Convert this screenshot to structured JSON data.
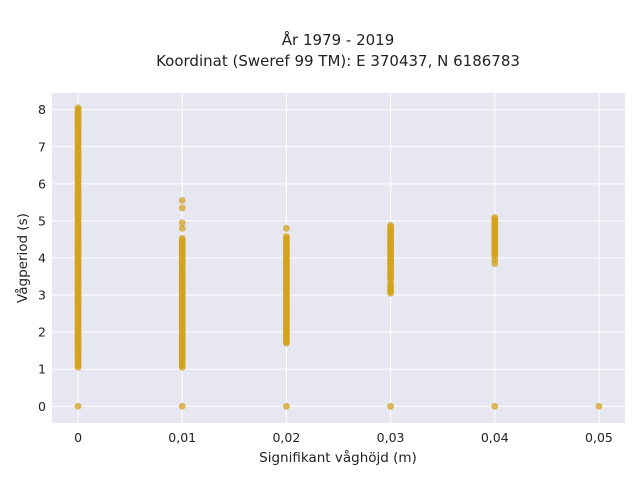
{
  "chart_data": {
    "type": "scatter",
    "title": "År 1979 - 2019",
    "subtitle": "Koordinat (Sweref 99 TM): E 370437, N 6186783",
    "xlabel": "Signifikant våghöjd (m)",
    "ylabel": "Vågperiod (s)",
    "xlim": [
      -0.0025,
      0.0525
    ],
    "ylim": [
      -0.45,
      8.45
    ],
    "x_ticks": [
      0,
      0.01,
      0.02,
      0.03,
      0.04,
      0.05
    ],
    "x_tick_labels": [
      "0",
      "0,01",
      "0,02",
      "0,03",
      "0,04",
      "0,05"
    ],
    "y_ticks": [
      0,
      1,
      2,
      3,
      4,
      5,
      6,
      7,
      8
    ],
    "y_tick_labels": [
      "0",
      "1",
      "2",
      "3",
      "4",
      "5",
      "6",
      "7",
      "8"
    ],
    "grid": true,
    "legend": "none",
    "colors": {
      "marker": "#d4a11e",
      "plot_background": "#e6e7f0",
      "grid": "#ffffff"
    },
    "series": [
      {
        "values": [
          {
            "x": 0,
            "y_range": [
              1.05,
              8.05
            ]
          },
          {
            "x": 0,
            "y": 0
          },
          {
            "x": 0.01,
            "y_range": [
              1.05,
              4.55
            ]
          },
          {
            "x": 0.01,
            "y": 4.8
          },
          {
            "x": 0.01,
            "y": 4.95
          },
          {
            "x": 0.01,
            "y": 5.35
          },
          {
            "x": 0.01,
            "y": 5.55
          },
          {
            "x": 0.01,
            "y": 0
          },
          {
            "x": 0.02,
            "y_range": [
              1.7,
              4.6
            ]
          },
          {
            "x": 0.02,
            "y": 4.8
          },
          {
            "x": 0.02,
            "y": 0
          },
          {
            "x": 0.03,
            "y_range": [
              3.4,
              4.9
            ]
          },
          {
            "x": 0.03,
            "y_range": [
              3.05,
              3.3
            ]
          },
          {
            "x": 0.03,
            "y": 0
          },
          {
            "x": 0.04,
            "y_range": [
              4.05,
              5.1
            ]
          },
          {
            "x": 0.04,
            "y": 3.85
          },
          {
            "x": 0.04,
            "y": 3.95
          },
          {
            "x": 0.04,
            "y": 0
          },
          {
            "x": 0.05,
            "y": 0
          }
        ]
      }
    ]
  }
}
